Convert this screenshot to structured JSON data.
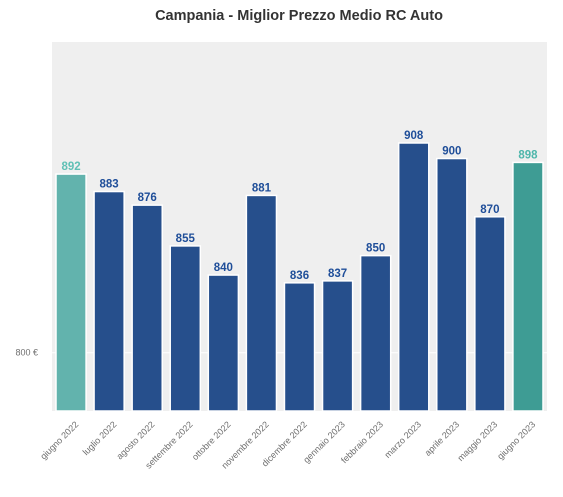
{
  "chart_data": {
    "type": "bar",
    "title": "Campania - Miglior Prezzo Medio RC Auto",
    "xlabel": "",
    "ylabel": "",
    "categories": [
      "giugno 2022",
      "luglio 2022",
      "agosto 2022",
      "settembre 2022",
      "ottobre 2022",
      "novembre 2022",
      "dicembre 2022",
      "gennaio 2023",
      "febbraio 2023",
      "marzo 2023",
      "aprile 2023",
      "maggio 2023",
      "giugno 2023"
    ],
    "values": [
      892,
      883,
      876,
      855,
      840,
      881,
      836,
      837,
      850,
      908,
      900,
      870,
      898
    ],
    "data_labels": [
      "892",
      "883",
      "876",
      "855",
      "840",
      "881",
      "836",
      "837",
      "850",
      "908",
      "900",
      "870",
      "898"
    ],
    "ylim": [
      770,
      960
    ],
    "yticks": [
      {
        "value": 800,
        "label": "800 €"
      }
    ],
    "grid": true,
    "legend": "none",
    "colors": {
      "background": "#efefef",
      "grid": "#ffffff",
      "default_bar": "#264f8c",
      "default_label": "#1f4e99",
      "first_bar": "#62b3ad",
      "first_label": "#5fc0b5",
      "last_bar": "#3e9c94",
      "last_label": "#4db6ab"
    }
  }
}
